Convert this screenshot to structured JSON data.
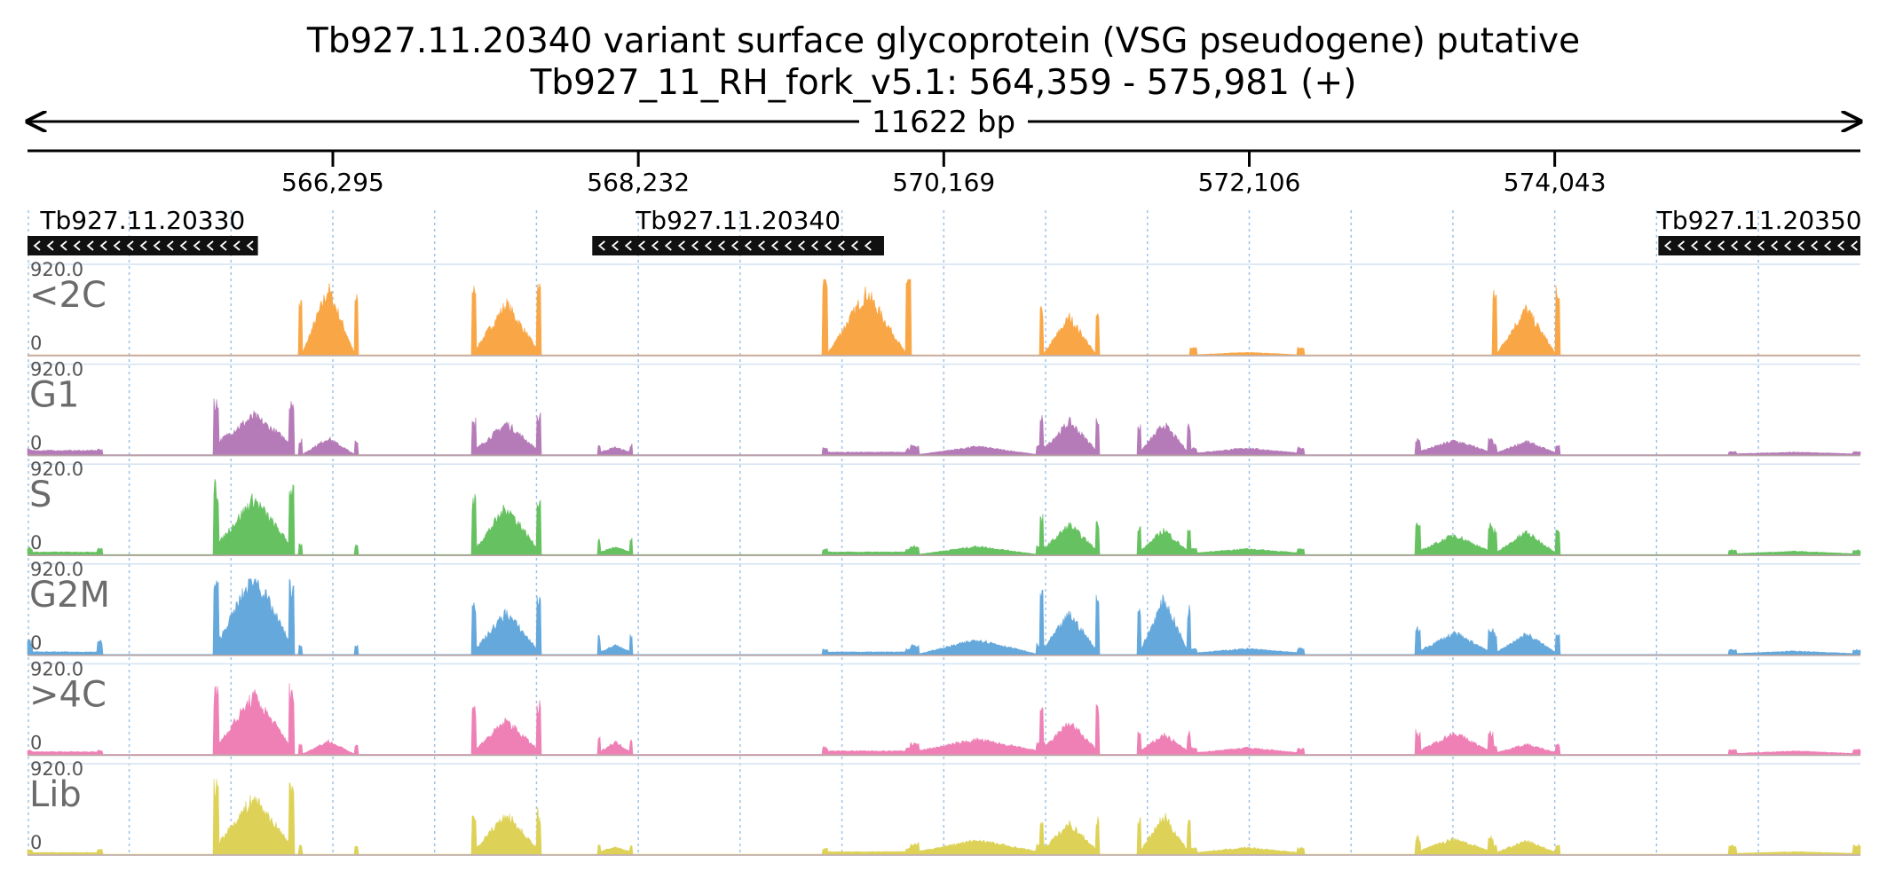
{
  "chart_data": {
    "type": "area",
    "title": "Tb927.11.20340  variant surface glycoprotein (VSG  pseudogene)  putative",
    "subtitle": "Tb927_11_RH_fork_v5.1: 564,359 - 575,981 (+)",
    "span_label": "11622 bp",
    "xlim": [
      564359,
      575981
    ],
    "ylim": [
      0,
      920
    ],
    "y_max_label": "920.0",
    "y_min_label": "0",
    "ticks": [
      {
        "value": 566295,
        "label": "566,295"
      },
      {
        "value": 568232,
        "label": "568,232"
      },
      {
        "value": 570169,
        "label": "570,169"
      },
      {
        "value": 572106,
        "label": "572,106"
      },
      {
        "value": 574043,
        "label": "574,043"
      }
    ],
    "genes": [
      {
        "name": "Tb927.11.20330",
        "start": 564359,
        "end": 565820,
        "strand": "-"
      },
      {
        "name": "Tb927.11.20340",
        "start": 567940,
        "end": 569790,
        "strand": "-"
      },
      {
        "name": "Tb927.11.20350",
        "start": 574700,
        "end": 575981,
        "strand": "-"
      }
    ],
    "tracks": [
      {
        "name": "<2C",
        "color": "#f9a746"
      },
      {
        "name": "G1",
        "color": "#b57bb8"
      },
      {
        "name": "S",
        "color": "#66c160"
      },
      {
        "name": "G2M",
        "color": "#64a8dc"
      },
      {
        "name": ">4C",
        "color": "#ee80b5"
      },
      {
        "name": "Lib",
        "color": "#ddd257"
      }
    ],
    "peaks": [
      {
        "start": 564359,
        "end": 564830,
        "tri": [
          0,
          0,
          0,
          0,
          0,
          0
        ],
        "edge": [
          0,
          70,
          80,
          170,
          50,
          60
        ],
        "base": [
          0,
          50,
          30,
          30,
          30,
          20
        ]
      },
      {
        "start": 565540,
        "end": 566050,
        "tri": [
          0,
          320,
          560,
          830,
          600,
          570
        ],
        "edge": [
          0,
          680,
          880,
          900,
          800,
          920
        ],
        "base": [
          0,
          150,
          120,
          140,
          110,
          120
        ]
      },
      {
        "start": 566080,
        "end": 566450,
        "tri": [
          800,
          200,
          0,
          0,
          160,
          0
        ],
        "edge": [
          700,
          180,
          120,
          110,
          130,
          110
        ],
        "base": [
          0,
          0,
          0,
          0,
          0,
          0
        ]
      },
      {
        "start": 567180,
        "end": 567610,
        "tri": [
          560,
          320,
          510,
          450,
          350,
          430
        ],
        "edge": [
          880,
          470,
          720,
          720,
          600,
          520
        ],
        "base": [
          60,
          60,
          70,
          60,
          60,
          60
        ]
      },
      {
        "start": 567980,
        "end": 568190,
        "tri": [
          0,
          60,
          60,
          80,
          120,
          60
        ],
        "edge": [
          0,
          130,
          180,
          230,
          200,
          110
        ],
        "base": [
          0,
          30,
          30,
          30,
          30,
          30
        ]
      },
      {
        "start": 569400,
        "end": 569960,
        "tri": [
          760,
          0,
          0,
          0,
          0,
          0
        ],
        "edge": [
          1000,
          80,
          70,
          70,
          90,
          80
        ],
        "base": [
          0,
          30,
          30,
          30,
          40,
          30
        ]
      },
      {
        "start": 569960,
        "end": 570810,
        "tri": [
          0,
          100,
          100,
          180,
          140,
          140
        ],
        "edge": [
          0,
          110,
          110,
          120,
          140,
          130
        ],
        "base": [
          0,
          0,
          0,
          0,
          40,
          30
        ]
      },
      {
        "start": 570780,
        "end": 571150,
        "tri": [
          460,
          340,
          300,
          430,
          330,
          310
        ],
        "edge": [
          580,
          440,
          450,
          800,
          620,
          440
        ],
        "base": [
          0,
          60,
          60,
          60,
          60,
          60
        ]
      },
      {
        "start": 571400,
        "end": 571730,
        "tri": [
          0,
          330,
          260,
          630,
          200,
          420
        ],
        "edge": [
          0,
          380,
          350,
          600,
          280,
          460
        ],
        "base": [
          0,
          40,
          40,
          40,
          40,
          40
        ]
      },
      {
        "start": 571730,
        "end": 572450,
        "tri": [
          30,
          60,
          50,
          50,
          60,
          60
        ],
        "edge": [
          90,
          90,
          80,
          80,
          80,
          80
        ],
        "base": [
          0,
          20,
          20,
          20,
          20,
          20
        ]
      },
      {
        "start": 573160,
        "end": 573650,
        "tri": [
          0,
          130,
          200,
          220,
          220,
          150
        ],
        "edge": [
          0,
          190,
          370,
          320,
          280,
          210
        ],
        "base": [
          0,
          40,
          40,
          40,
          40,
          40
        ]
      },
      {
        "start": 573650,
        "end": 574075,
        "tri": [
          560,
          140,
          250,
          230,
          100,
          140
        ],
        "edge": [
          770,
          120,
          320,
          280,
          120,
          120
        ],
        "base": [
          0,
          20,
          20,
          20,
          20,
          20
        ]
      },
      {
        "start": 575150,
        "end": 575981,
        "tri": [
          0,
          20,
          30,
          30,
          30,
          20
        ],
        "edge": [
          0,
          40,
          60,
          60,
          60,
          110
        ],
        "base": [
          0,
          10,
          10,
          10,
          10,
          10
        ]
      }
    ]
  }
}
